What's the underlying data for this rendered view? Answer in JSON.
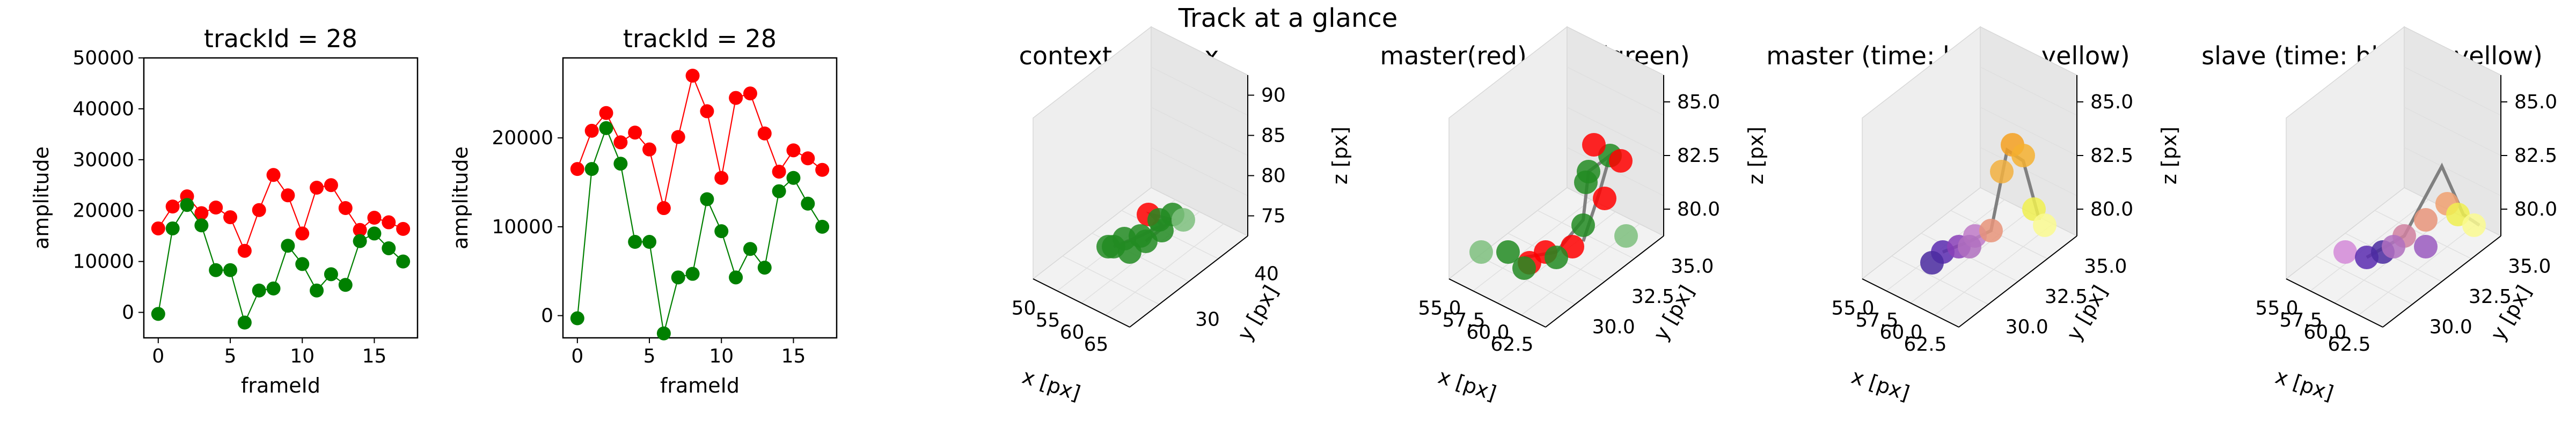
{
  "figure": {
    "suptitle": "Track at a glance"
  },
  "chart_data": [
    {
      "type": "line",
      "title": "trackId = 28",
      "xlabel": "frameId",
      "ylabel": "amplitude",
      "xlim": [
        -1,
        18
      ],
      "ylim": [
        -5000,
        50000
      ],
      "xticks": [
        0,
        5,
        10,
        15
      ],
      "yticks": [
        0,
        10000,
        20000,
        30000,
        40000,
        50000
      ],
      "x": [
        0,
        1,
        2,
        3,
        4,
        5,
        6,
        7,
        8,
        9,
        10,
        11,
        12,
        13,
        14,
        15,
        16,
        17
      ],
      "series": [
        {
          "color": "#ff0000",
          "values": [
            16500,
            20800,
            22800,
            19500,
            20600,
            18700,
            12100,
            20100,
            27000,
            23000,
            15500,
            24500,
            25000,
            20500,
            16200,
            18600,
            17700,
            16400
          ]
        },
        {
          "color": "#008000",
          "values": [
            -300,
            16500,
            21100,
            17100,
            8300,
            8300,
            -2000,
            4300,
            4700,
            13100,
            9500,
            4300,
            7500,
            5400,
            14000,
            15500,
            12600,
            10000
          ]
        }
      ]
    },
    {
      "type": "line",
      "title": "trackId = 28",
      "xlabel": "frameId",
      "ylabel": "amplitude",
      "xlim": [
        -1,
        18
      ],
      "ylim": [
        -2500,
        29000
      ],
      "xticks": [
        0,
        5,
        10,
        15
      ],
      "yticks": [
        0,
        10000,
        20000
      ],
      "x": [
        0,
        1,
        2,
        3,
        4,
        5,
        6,
        7,
        8,
        9,
        10,
        11,
        12,
        13,
        14,
        15,
        16,
        17
      ],
      "series": [
        {
          "color": "#ff0000",
          "values": [
            16500,
            20800,
            22800,
            19500,
            20600,
            18700,
            12100,
            20100,
            27000,
            23000,
            15500,
            24500,
            25000,
            20500,
            16200,
            18600,
            17700,
            16400
          ]
        },
        {
          "color": "#008000",
          "values": [
            -300,
            16500,
            21100,
            17100,
            8300,
            8300,
            -2000,
            4300,
            4700,
            13100,
            9500,
            4300,
            7500,
            5400,
            14000,
            15500,
            12600,
            10000
          ]
        }
      ]
    },
    {
      "type": "scatter",
      "title": "context +- 10px",
      "xlabel": "x [px]",
      "ylabel": "y [px]",
      "zlabel": "z [px]",
      "xticks": [
        "50",
        "55",
        "60",
        "65"
      ],
      "yticks": [
        "30",
        "40"
      ],
      "zticks": [
        "75",
        "80",
        "85",
        "90"
      ]
    },
    {
      "type": "scatter",
      "title": "master(red) slave(green)",
      "xlabel": "x [px]",
      "ylabel": "y [px]",
      "zlabel": "z [px]",
      "xticks": [
        "55.0",
        "57.5",
        "60.0",
        "62.5"
      ],
      "yticks": [
        "30.0",
        "32.5",
        "35.0"
      ],
      "zticks": [
        "80.0",
        "82.5",
        "85.0"
      ]
    },
    {
      "type": "scatter",
      "title": "master (time: blue -> yellow)",
      "xlabel": "x [px]",
      "ylabel": "y [px]",
      "zlabel": "z [px]",
      "xticks": [
        "55.0",
        "57.5",
        "60.0",
        "62.5"
      ],
      "yticks": [
        "30.0",
        "32.5",
        "35.0"
      ],
      "zticks": [
        "80.0",
        "82.5",
        "85.0"
      ]
    },
    {
      "type": "scatter",
      "title": "slave (time: blue -> yellow)",
      "xlabel": "x [px]",
      "ylabel": "y [px]",
      "zlabel": "z [px]",
      "xticks": [
        "55.0",
        "57.5",
        "60.0",
        "62.5"
      ],
      "yticks": [
        "30.0",
        "32.5",
        "35.0"
      ],
      "zticks": [
        "80.0",
        "82.5",
        "85.0"
      ]
    }
  ]
}
